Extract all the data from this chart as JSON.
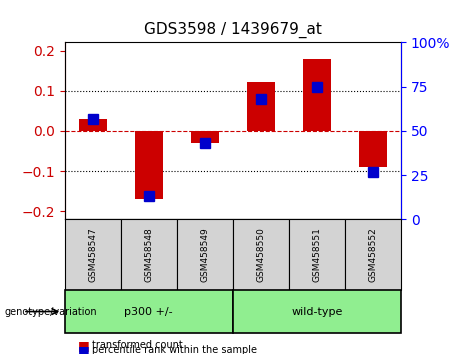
{
  "title": "GDS3598 / 1439679_at",
  "samples": [
    "GSM458547",
    "GSM458548",
    "GSM458549",
    "GSM458550",
    "GSM458551",
    "GSM458552"
  ],
  "red_bars": [
    0.03,
    -0.17,
    -0.03,
    0.122,
    0.18,
    -0.09
  ],
  "blue_squares_pct": [
    57,
    13,
    43,
    68,
    75,
    27
  ],
  "groups": [
    {
      "label": "p300 +/-",
      "start": 0,
      "end": 3,
      "color": "#90ee90"
    },
    {
      "label": "wild-type",
      "start": 3,
      "end": 6,
      "color": "#90ee90"
    }
  ],
  "group_label_prefix": "genotype/variation",
  "ylim_left": [
    -0.22,
    0.22
  ],
  "ylim_right": [
    0,
    100
  ],
  "yticks_left": [
    -0.2,
    -0.1,
    0,
    0.1,
    0.2
  ],
  "yticks_right": [
    0,
    25,
    50,
    75,
    100
  ],
  "hlines": [
    -0.1,
    0,
    0.1
  ],
  "red_color": "#cc0000",
  "blue_color": "#0000cc",
  "bar_width": 0.5,
  "blue_marker_size": 7,
  "legend_items": [
    "transformed count",
    "percentile rank within the sample"
  ],
  "grid_color": "#000000",
  "zero_line_color": "#cc0000",
  "background_plot": "#ffffff",
  "background_label": "#d3d3d3",
  "background_group": "#90ee90"
}
